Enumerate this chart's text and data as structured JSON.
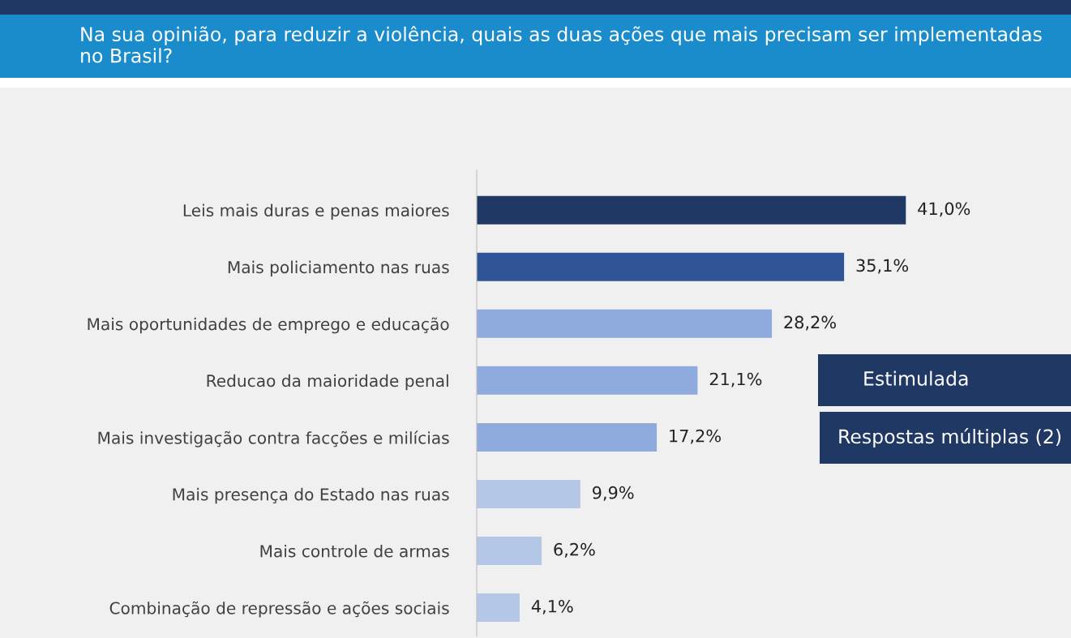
{
  "chart_data": {
    "type": "bar",
    "orientation": "horizontal",
    "title": "Na sua opinião, para reduzir a violência, quais as duas ações que mais precisam ser implementadas no Brasil?",
    "categories": [
      "Leis mais duras e penas maiores",
      "Mais policiamento nas ruas",
      "Mais oportunidades de emprego e educação",
      "Reducao da maioridade penal",
      "Mais investigação contra facções e milícias",
      "Mais presença do Estado nas ruas",
      "Mais controle de armas",
      "Combinação de repressão e ações sociais"
    ],
    "values": [
      41.0,
      35.1,
      28.2,
      21.1,
      17.2,
      9.9,
      6.2,
      4.1
    ],
    "colors": [
      "#203864",
      "#2f5597",
      "#8faadc",
      "#8faadc",
      "#8faadc",
      "#b4c7e7",
      "#b4c7e7",
      "#b4c7e7"
    ],
    "value_labels": [
      "41,0%",
      "35,1%",
      "28,2%",
      "21,1%",
      "17,2%",
      "9,9%",
      "6,2%",
      "4,1%"
    ],
    "annotations": [
      "Estimulada",
      "Respostas múltiplas (2)"
    ],
    "grid": false,
    "legend": false
  }
}
